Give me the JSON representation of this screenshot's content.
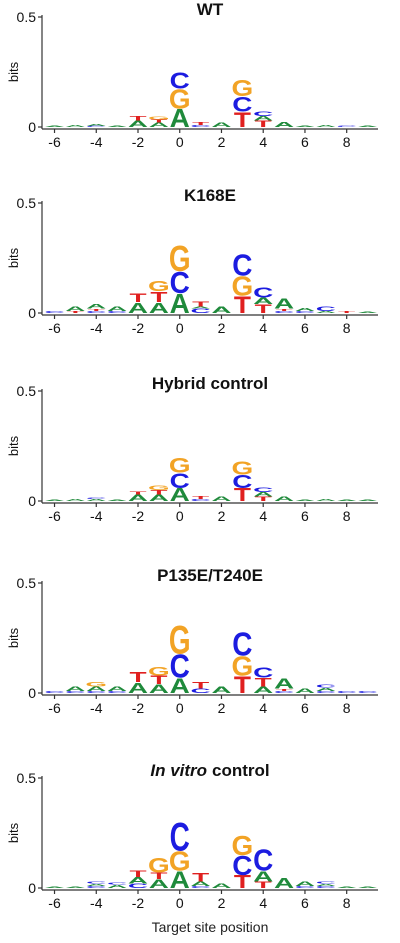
{
  "chart_data": [
    {
      "type": "logo",
      "title": "WT",
      "ylabel": "bits",
      "ylim": [
        0,
        0.5
      ],
      "yticks": [
        0,
        0.5
      ],
      "xlim": [
        -6.6,
        9.5
      ],
      "xticks": [
        -6,
        -4,
        -2,
        0,
        2,
        4,
        6,
        8
      ],
      "colors": {
        "A": "#1f8a3b",
        "C": "#1c1ce0",
        "G": "#f2a325",
        "T": "#e0201f"
      },
      "positions": [
        -6,
        -5,
        -4,
        -3,
        -2,
        -1,
        0,
        1,
        2,
        3,
        4,
        5,
        6,
        7,
        8,
        9
      ],
      "stacks": [
        [
          {
            "letter": "A",
            "bits": 0.005
          }
        ],
        [
          {
            "letter": "A",
            "bits": 0.01
          }
        ],
        [
          {
            "letter": "C",
            "bits": 0.005
          },
          {
            "letter": "A",
            "bits": 0.01
          }
        ],
        [
          {
            "letter": "A",
            "bits": 0.005
          }
        ],
        [
          {
            "letter": "A",
            "bits": 0.03
          },
          {
            "letter": "T",
            "bits": 0.02
          }
        ],
        [
          {
            "letter": "A",
            "bits": 0.02
          },
          {
            "letter": "T",
            "bits": 0.015
          },
          {
            "letter": "G",
            "bits": 0.015
          }
        ],
        [
          {
            "letter": "A",
            "bits": 0.085
          },
          {
            "letter": "G",
            "bits": 0.09
          },
          {
            "letter": "C",
            "bits": 0.075
          }
        ],
        [
          {
            "letter": "C",
            "bits": 0.01
          },
          {
            "letter": "T",
            "bits": 0.015
          }
        ],
        [
          {
            "letter": "A",
            "bits": 0.02
          }
        ],
        [
          {
            "letter": "T",
            "bits": 0.07
          },
          {
            "letter": "C",
            "bits": 0.07
          },
          {
            "letter": "G",
            "bits": 0.075
          }
        ],
        [
          {
            "letter": "T",
            "bits": 0.03
          },
          {
            "letter": "A",
            "bits": 0.02
          },
          {
            "letter": "C",
            "bits": 0.02
          }
        ],
        [
          {
            "letter": "A",
            "bits": 0.025
          }
        ],
        [
          {
            "letter": "A",
            "bits": 0.005
          }
        ],
        [
          {
            "letter": "A",
            "bits": 0.01
          }
        ],
        [
          {
            "letter": "C",
            "bits": 0.005
          }
        ],
        [
          {
            "letter": "A",
            "bits": 0.005
          }
        ]
      ]
    },
    {
      "type": "logo",
      "title": "K168E",
      "ylabel": "bits",
      "ylim": [
        0,
        0.5
      ],
      "yticks": [
        0,
        0.5
      ],
      "xlim": [
        -6.6,
        9.5
      ],
      "xticks": [
        -6,
        -4,
        -2,
        0,
        2,
        4,
        6,
        8
      ],
      "colors": {
        "A": "#1f8a3b",
        "C": "#1c1ce0",
        "G": "#f2a325",
        "T": "#e0201f"
      },
      "positions": [
        -6,
        -5,
        -4,
        -3,
        -2,
        -1,
        0,
        1,
        2,
        3,
        4,
        5,
        6,
        7,
        8,
        9
      ],
      "stacks": [
        [
          {
            "letter": "C",
            "bits": 0.01
          }
        ],
        [
          {
            "letter": "T",
            "bits": 0.01
          },
          {
            "letter": "A",
            "bits": 0.02
          }
        ],
        [
          {
            "letter": "C",
            "bits": 0.01
          },
          {
            "letter": "T",
            "bits": 0.01
          },
          {
            "letter": "A",
            "bits": 0.02
          }
        ],
        [
          {
            "letter": "C",
            "bits": 0.01
          },
          {
            "letter": "A",
            "bits": 0.02
          }
        ],
        [
          {
            "letter": "A",
            "bits": 0.05
          },
          {
            "letter": "T",
            "bits": 0.04
          }
        ],
        [
          {
            "letter": "A",
            "bits": 0.05
          },
          {
            "letter": "T",
            "bits": 0.05
          },
          {
            "letter": "G",
            "bits": 0.05
          }
        ],
        [
          {
            "letter": "A",
            "bits": 0.09
          },
          {
            "letter": "C",
            "bits": 0.1
          },
          {
            "letter": "G",
            "bits": 0.12
          }
        ],
        [
          {
            "letter": "C",
            "bits": 0.02
          },
          {
            "letter": "A",
            "bits": 0.01
          },
          {
            "letter": "T",
            "bits": 0.025
          }
        ],
        [
          {
            "letter": "A",
            "bits": 0.03
          }
        ],
        [
          {
            "letter": "T",
            "bits": 0.08
          },
          {
            "letter": "G",
            "bits": 0.09
          },
          {
            "letter": "C",
            "bits": 0.1
          }
        ],
        [
          {
            "letter": "T",
            "bits": 0.04
          },
          {
            "letter": "A",
            "bits": 0.03
          },
          {
            "letter": "C",
            "bits": 0.05
          }
        ],
        [
          {
            "letter": "C",
            "bits": 0.01
          },
          {
            "letter": "T",
            "bits": 0.01
          },
          {
            "letter": "A",
            "bits": 0.05
          }
        ],
        [
          {
            "letter": "C",
            "bits": 0.01
          },
          {
            "letter": "A",
            "bits": 0.015
          }
        ],
        [
          {
            "letter": "A",
            "bits": 0.01
          },
          {
            "letter": "C",
            "bits": 0.02
          }
        ],
        [
          {
            "letter": "T",
            "bits": 0.01
          }
        ],
        [
          {
            "letter": "A",
            "bits": 0.005
          }
        ]
      ]
    },
    {
      "type": "logo",
      "title": "Hybrid control",
      "ylabel": "bits",
      "ylim": [
        0,
        0.5
      ],
      "yticks": [
        0,
        0.5
      ],
      "xlim": [
        -6.6,
        9.5
      ],
      "xticks": [
        -6,
        -4,
        -2,
        0,
        2,
        4,
        6,
        8
      ],
      "colors": {
        "A": "#1f8a3b",
        "C": "#1c1ce0",
        "G": "#f2a325",
        "T": "#e0201f"
      },
      "positions": [
        -6,
        -5,
        -4,
        -3,
        -2,
        -1,
        0,
        1,
        2,
        3,
        4,
        5,
        6,
        7,
        8,
        9
      ],
      "stacks": [
        [
          {
            "letter": "A",
            "bits": 0.005
          }
        ],
        [
          {
            "letter": "A",
            "bits": 0.01
          }
        ],
        [
          {
            "letter": "A",
            "bits": 0.01
          },
          {
            "letter": "C",
            "bits": 0.005
          }
        ],
        [
          {
            "letter": "A",
            "bits": 0.005
          }
        ],
        [
          {
            "letter": "A",
            "bits": 0.03
          },
          {
            "letter": "T",
            "bits": 0.015
          }
        ],
        [
          {
            "letter": "A",
            "bits": 0.03
          },
          {
            "letter": "T",
            "bits": 0.02
          },
          {
            "letter": "G",
            "bits": 0.02
          }
        ],
        [
          {
            "letter": "A",
            "bits": 0.06
          },
          {
            "letter": "C",
            "bits": 0.07
          },
          {
            "letter": "G",
            "bits": 0.07
          }
        ],
        [
          {
            "letter": "C",
            "bits": 0.01
          },
          {
            "letter": "T",
            "bits": 0.015
          }
        ],
        [
          {
            "letter": "A",
            "bits": 0.02
          }
        ],
        [
          {
            "letter": "T",
            "bits": 0.06
          },
          {
            "letter": "C",
            "bits": 0.06
          },
          {
            "letter": "G",
            "bits": 0.06
          }
        ],
        [
          {
            "letter": "T",
            "bits": 0.02
          },
          {
            "letter": "A",
            "bits": 0.02
          },
          {
            "letter": "C",
            "bits": 0.02
          }
        ],
        [
          {
            "letter": "A",
            "bits": 0.02
          }
        ],
        [
          {
            "letter": "A",
            "bits": 0.005
          }
        ],
        [
          {
            "letter": "A",
            "bits": 0.01
          }
        ],
        [
          {
            "letter": "A",
            "bits": 0.005
          }
        ],
        [
          {
            "letter": "A",
            "bits": 0.005
          }
        ]
      ]
    },
    {
      "type": "logo",
      "title": "P135E/T240E",
      "title_color": "#2f6b52",
      "ylabel": "bits",
      "ylim": [
        0,
        0.5
      ],
      "yticks": [
        0,
        0.5
      ],
      "xlim": [
        -6.6,
        9.5
      ],
      "xticks": [
        -6,
        -4,
        -2,
        0,
        2,
        4,
        6,
        8
      ],
      "colors": {
        "A": "#1f8a3b",
        "C": "#1c1ce0",
        "G": "#f2a325",
        "T": "#e0201f"
      },
      "positions": [
        -6,
        -5,
        -4,
        -3,
        -2,
        -1,
        0,
        1,
        2,
        3,
        4,
        5,
        6,
        7,
        8,
        9
      ],
      "stacks": [
        [
          {
            "letter": "C",
            "bits": 0.01
          }
        ],
        [
          {
            "letter": "C",
            "bits": 0.01
          },
          {
            "letter": "A",
            "bits": 0.02
          }
        ],
        [
          {
            "letter": "C",
            "bits": 0.01
          },
          {
            "letter": "A",
            "bits": 0.02
          },
          {
            "letter": "G",
            "bits": 0.02
          }
        ],
        [
          {
            "letter": "C",
            "bits": 0.01
          },
          {
            "letter": "A",
            "bits": 0.02
          }
        ],
        [
          {
            "letter": "A",
            "bits": 0.05
          },
          {
            "letter": "T",
            "bits": 0.05
          }
        ],
        [
          {
            "letter": "A",
            "bits": 0.04
          },
          {
            "letter": "T",
            "bits": 0.04
          },
          {
            "letter": "G",
            "bits": 0.04
          }
        ],
        [
          {
            "letter": "A",
            "bits": 0.07
          },
          {
            "letter": "C",
            "bits": 0.11
          },
          {
            "letter": "G",
            "bits": 0.13
          }
        ],
        [
          {
            "letter": "C",
            "bits": 0.02
          },
          {
            "letter": "T",
            "bits": 0.03
          }
        ],
        [
          {
            "letter": "A",
            "bits": 0.03
          }
        ],
        [
          {
            "letter": "T",
            "bits": 0.08
          },
          {
            "letter": "G",
            "bits": 0.09
          },
          {
            "letter": "C",
            "bits": 0.11
          }
        ],
        [
          {
            "letter": "A",
            "bits": 0.03
          },
          {
            "letter": "T",
            "bits": 0.04
          },
          {
            "letter": "C",
            "bits": 0.05
          }
        ],
        [
          {
            "letter": "C",
            "bits": 0.01
          },
          {
            "letter": "T",
            "bits": 0.01
          },
          {
            "letter": "A",
            "bits": 0.05
          }
        ],
        [
          {
            "letter": "A",
            "bits": 0.02
          }
        ],
        [
          {
            "letter": "C",
            "bits": 0.01
          },
          {
            "letter": "A",
            "bits": 0.015
          },
          {
            "letter": "C",
            "bits": 0.015
          }
        ],
        [
          {
            "letter": "C",
            "bits": 0.01
          }
        ],
        [
          {
            "letter": "C",
            "bits": 0.01
          }
        ]
      ]
    },
    {
      "type": "logo",
      "title_italic": "In vitro",
      "title": "control",
      "ylabel": "bits",
      "xlabel": "Target site position",
      "ylim": [
        0,
        0.5
      ],
      "yticks": [
        0,
        0.5
      ],
      "xlim": [
        -6.6,
        9.5
      ],
      "xticks": [
        -6,
        -4,
        -2,
        0,
        2,
        4,
        6,
        8
      ],
      "colors": {
        "A": "#1f8a3b",
        "C": "#1c1ce0",
        "G": "#f2a325",
        "T": "#e0201f"
      },
      "positions": [
        -6,
        -5,
        -4,
        -3,
        -2,
        -1,
        0,
        1,
        2,
        3,
        4,
        5,
        6,
        7,
        8,
        9
      ],
      "stacks": [
        [
          {
            "letter": "A",
            "bits": 0.005
          }
        ],
        [
          {
            "letter": "A",
            "bits": 0.005
          }
        ],
        [
          {
            "letter": "C",
            "bits": 0.01
          },
          {
            "letter": "A",
            "bits": 0.01
          },
          {
            "letter": "C",
            "bits": 0.01
          }
        ],
        [
          {
            "letter": "A",
            "bits": 0.015
          },
          {
            "letter": "C",
            "bits": 0.01
          }
        ],
        [
          {
            "letter": "C",
            "bits": 0.02
          },
          {
            "letter": "A",
            "bits": 0.03
          },
          {
            "letter": "T",
            "bits": 0.03
          }
        ],
        [
          {
            "letter": "A",
            "bits": 0.04
          },
          {
            "letter": "T",
            "bits": 0.03
          },
          {
            "letter": "G",
            "bits": 0.07
          }
        ],
        [
          {
            "letter": "A",
            "bits": 0.08
          },
          {
            "letter": "G",
            "bits": 0.09
          },
          {
            "letter": "C",
            "bits": 0.13
          }
        ],
        [
          {
            "letter": "C",
            "bits": 0.01
          },
          {
            "letter": "A",
            "bits": 0.02
          },
          {
            "letter": "T",
            "bits": 0.04
          }
        ],
        [
          {
            "letter": "A",
            "bits": 0.02
          }
        ],
        [
          {
            "letter": "T",
            "bits": 0.06
          },
          {
            "letter": "C",
            "bits": 0.09
          },
          {
            "letter": "G",
            "bits": 0.09
          }
        ],
        [
          {
            "letter": "T",
            "bits": 0.03
          },
          {
            "letter": "A",
            "bits": 0.05
          },
          {
            "letter": "C",
            "bits": 0.1
          }
        ],
        [
          {
            "letter": "A",
            "bits": 0.05
          }
        ],
        [
          {
            "letter": "C",
            "bits": 0.01
          },
          {
            "letter": "A",
            "bits": 0.02
          }
        ],
        [
          {
            "letter": "C",
            "bits": 0.01
          },
          {
            "letter": "A",
            "bits": 0.01
          },
          {
            "letter": "C",
            "bits": 0.01
          }
        ],
        [
          {
            "letter": "A",
            "bits": 0.005
          }
        ],
        [
          {
            "letter": "A",
            "bits": 0.005
          }
        ]
      ]
    }
  ]
}
